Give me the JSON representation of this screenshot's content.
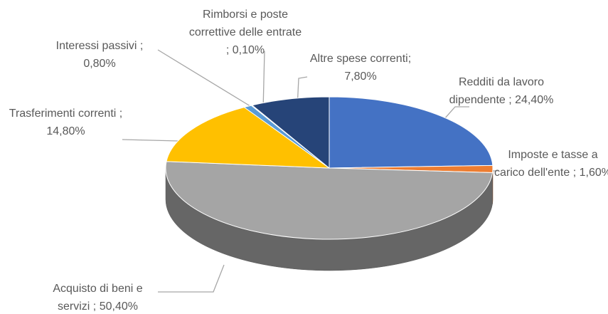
{
  "chart_data": {
    "type": "pie3d",
    "categories": [
      "Redditi da lavoro dipendente ;",
      "Imposte e tasse a carico dell'ente ;",
      "Acquisto di beni e servizi ;",
      "Trasferimenti correnti ;",
      "Interessi passivi ;",
      "Rimborsi e poste correttive delle entrate ;",
      "Altre spese correnti;"
    ],
    "values": [
      24.4,
      1.6,
      50.4,
      14.8,
      0.8,
      0.1,
      7.8
    ],
    "value_labels": [
      "24,40%",
      "1,60%",
      "50,40%",
      "14,80%",
      "0,80%",
      "0,10%",
      "7,80%"
    ],
    "colors": [
      "#4472c4",
      "#ed7d31",
      "#a5a5a5",
      "#ffc000",
      "#5b9bd5",
      "#70ad47",
      "#264478"
    ]
  }
}
